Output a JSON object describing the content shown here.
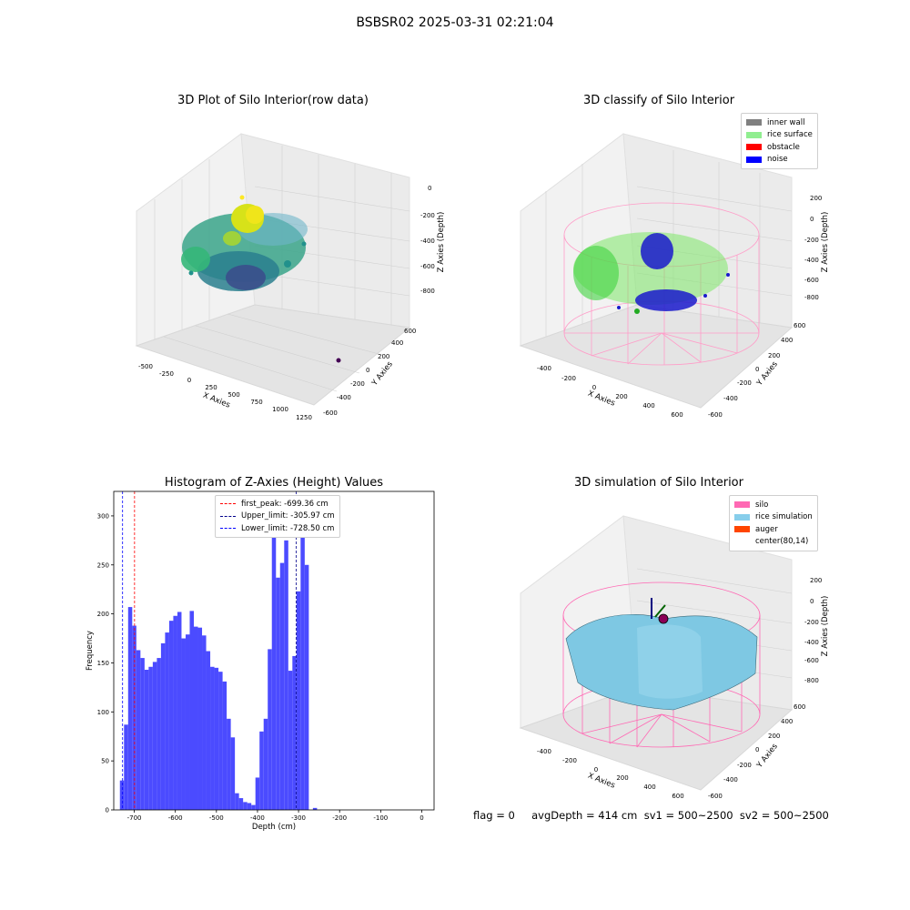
{
  "suptitle": "BSBSR02 2025-03-31 02:21:04",
  "panels": {
    "raw": {
      "title": "3D Plot of Silo Interior(row data)",
      "xlabel": "X Axies",
      "ylabel": "Y Axies",
      "zlabel": "Z Axies (Depth)",
      "xticks": [
        "-500",
        "-250",
        "0",
        "250",
        "500",
        "750",
        "1000",
        "1250"
      ],
      "yticks": [
        "600",
        "400",
        "200",
        "0",
        "-200",
        "-400",
        "-600"
      ],
      "zticks": [
        "0",
        "-200",
        "-400",
        "-600",
        "-800"
      ]
    },
    "classify": {
      "title": "3D classify of Silo Interior",
      "xlabel": "X Axies",
      "ylabel": "Y Axies",
      "zlabel": "Z Axies (Depth)",
      "xticks": [
        "-400",
        "-200",
        "0",
        "200",
        "400",
        "600"
      ],
      "yticks": [
        "600",
        "400",
        "200",
        "0",
        "-200",
        "-400",
        "-600"
      ],
      "zticks": [
        "200",
        "0",
        "-200",
        "-400",
        "-600",
        "-800"
      ],
      "legend": [
        {
          "label": "inner wall",
          "color": "#808080"
        },
        {
          "label": "rice surface",
          "color": "#90ee90"
        },
        {
          "label": "obstacle",
          "color": "#ff0000"
        },
        {
          "label": "noise",
          "color": "#0000ff"
        }
      ]
    },
    "simulation": {
      "title": "3D simulation of Silo Interior",
      "xlabel": "X Axies",
      "ylabel": "Y Axies",
      "zlabel": "Z Axies (Depth)",
      "xticks": [
        "-400",
        "-200",
        "0",
        "200",
        "400",
        "600"
      ],
      "yticks": [
        "600",
        "400",
        "200",
        "0",
        "-200",
        "-400",
        "-600"
      ],
      "zticks": [
        "200",
        "0",
        "-200",
        "-400",
        "-600",
        "-800"
      ],
      "legend": [
        {
          "label": "silo",
          "color": "#ff69b4"
        },
        {
          "label": "rice simulation",
          "color": "#87ceeb"
        },
        {
          "label": "auger",
          "color": "#ff4500"
        },
        {
          "label": "center(80,14)",
          "color": "#ffffff"
        }
      ]
    }
  },
  "chart_data": {
    "type": "bar",
    "title": "Histogram of Z-Axies (Height) Values",
    "xlabel": "Depth (cm)",
    "ylabel": "Frequency",
    "xlim": [
      -750,
      30
    ],
    "ylim": [
      0,
      325
    ],
    "xticks": [
      -700,
      -600,
      -500,
      -400,
      -300,
      -200,
      -100,
      0
    ],
    "yticks": [
      0,
      50,
      100,
      150,
      200,
      250,
      300
    ],
    "bar_color": "#4b4bff",
    "bin_start": -735,
    "bin_width": 10,
    "values": [
      30,
      87,
      207,
      188,
      163,
      155,
      143,
      146,
      151,
      155,
      170,
      181,
      193,
      198,
      202,
      175,
      179,
      203,
      187,
      186,
      178,
      162,
      146,
      145,
      141,
      131,
      93,
      74,
      17,
      12,
      8,
      7,
      5,
      33,
      80,
      93,
      164,
      295,
      237,
      252,
      275,
      142,
      157,
      223,
      309,
      250,
      0,
      2
    ],
    "vlines": [
      {
        "x": -699.36,
        "color": "#ff0000",
        "label": "first_peak: -699.36 cm"
      },
      {
        "x": -305.97,
        "color": "#00008b",
        "label": "Upper_limit: -305.97 cm"
      },
      {
        "x": -728.5,
        "color": "#0000ff",
        "label": "Lower_limit: -728.50 cm"
      }
    ],
    "legend_position": "top-center"
  },
  "status": {
    "text": "flag = 0     avgDepth = 414 cm  sv1 = 500~2500  sv2 = 500~2500"
  }
}
